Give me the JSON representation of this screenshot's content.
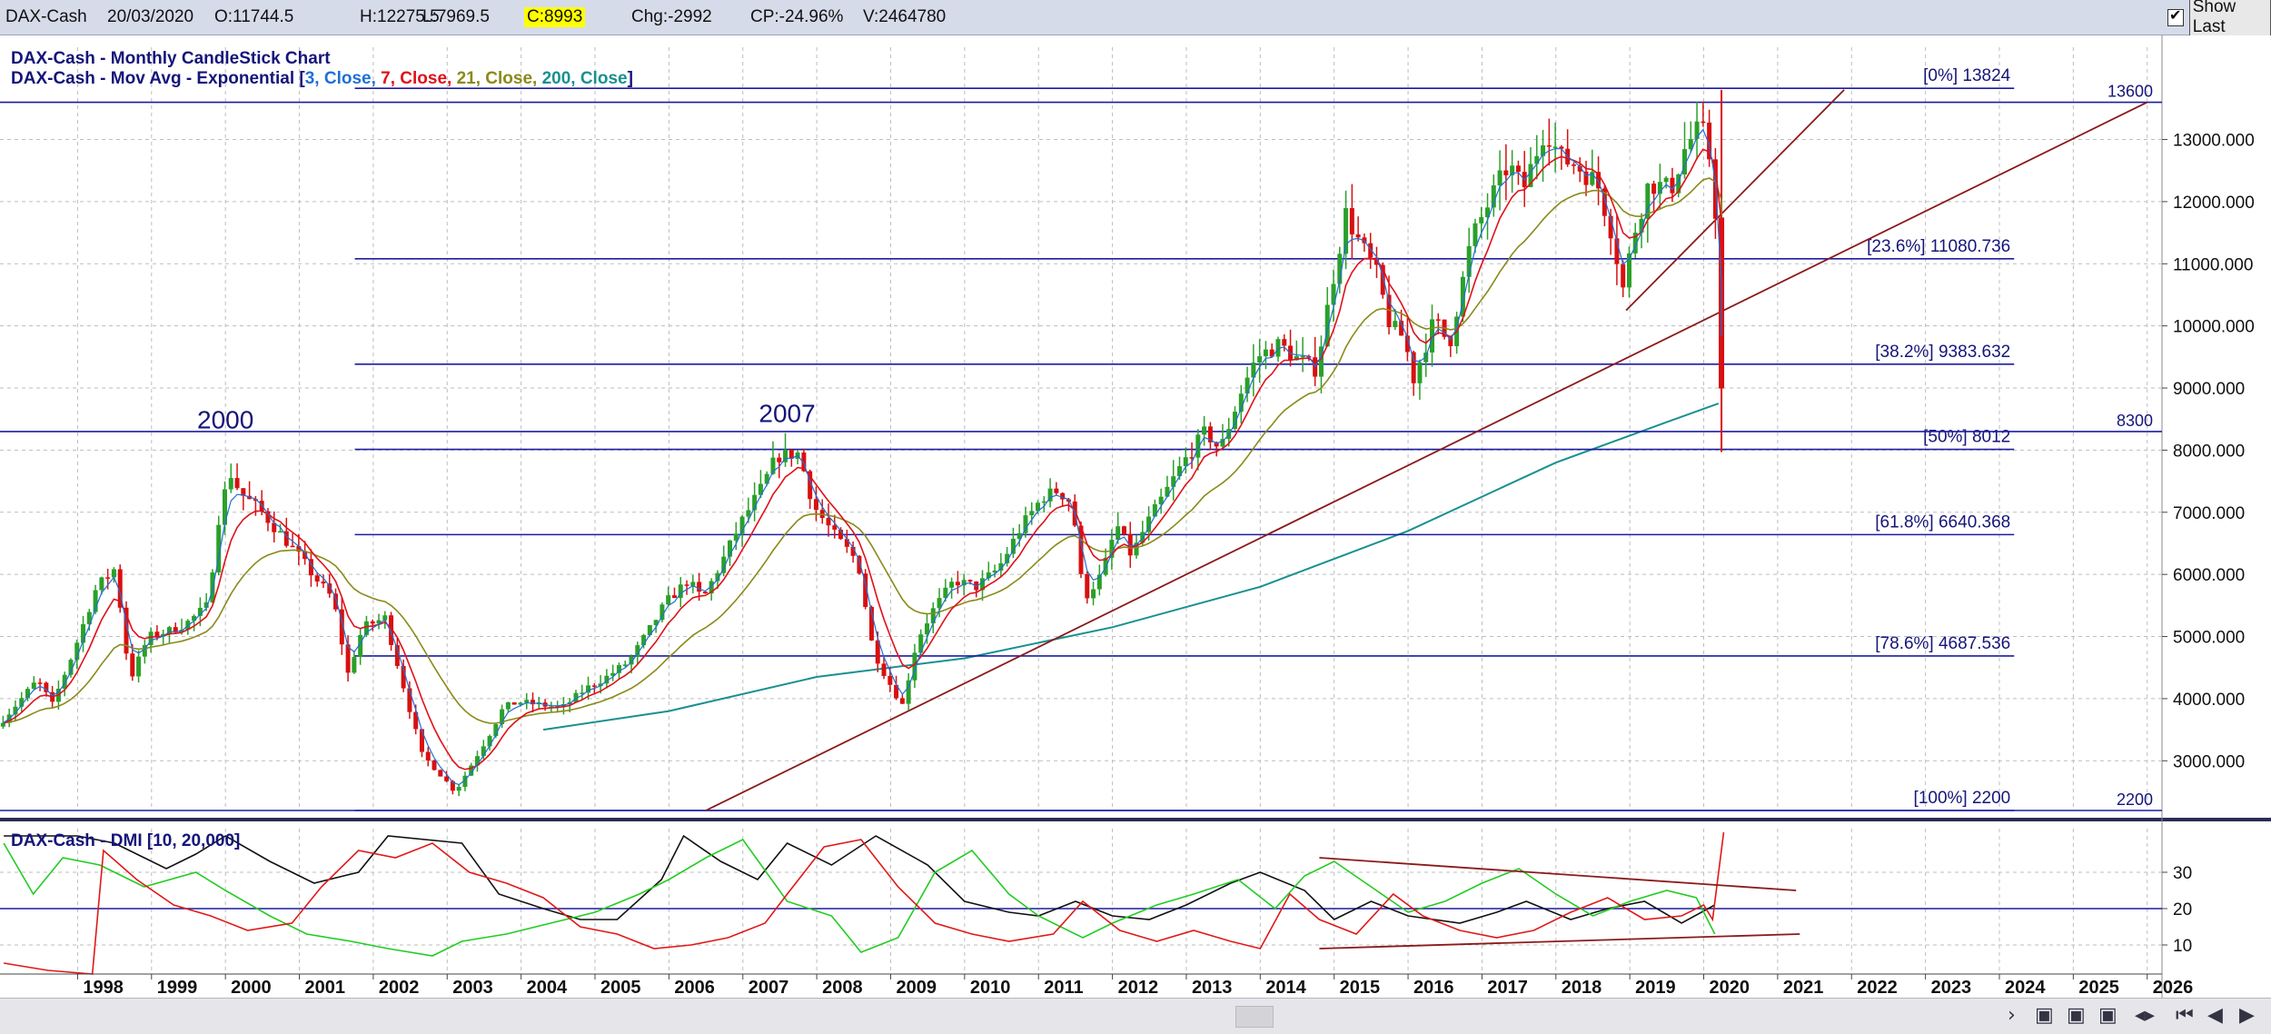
{
  "header": {
    "symbol": "DAX-Cash",
    "date": "20/03/2020",
    "open": "O:11744.5",
    "high": "H:12275.5",
    "low": "L:7969.5",
    "close": "C:8993",
    "change": "Chg:-2992",
    "change_pct": "CP:-24.96%",
    "volume": "V:2464780",
    "show_last_label": "Show Last",
    "show_last_checked": true
  },
  "legend": {
    "line1": "DAX-Cash - Monthly CandleStick Chart",
    "line2_prefix": "DAX-Cash - Mov Avg - Exponential [",
    "ema3": "3, Close, ",
    "ema7": "7, Close, ",
    "ema21": "21, Close, ",
    "ema200": "200, Close",
    "line2_suffix": "]",
    "colors": {
      "ema3": "#1f6fd6",
      "ema7": "#e0101a",
      "ema21": "#8a8a1a",
      "ema200": "#1a9090",
      "candle_up": "#2aa02a",
      "candle_down": "#d81010",
      "text": "#15157a"
    }
  },
  "dmi_legend": "DAX-Cash - DMI [10, 20,000]",
  "annotations": [
    {
      "text": "2000",
      "x": 2000.0,
      "y": 8350
    },
    {
      "text": "2007",
      "x": 2007.6,
      "y": 8450
    }
  ],
  "chart_data": [
    {
      "type": "candlestick",
      "title": "DAX-Cash - Monthly CandleStick Chart",
      "xlabel": "",
      "ylabel": "",
      "xlim": [
        1996.95,
        2026.2
      ],
      "ylim": [
        2200,
        13900
      ],
      "y_ticks": [
        "3000.000",
        "4000.000",
        "5000.000",
        "6000.000",
        "7000.000",
        "8000.000",
        "9000.000",
        "10000.000",
        "11000.000",
        "12000.000",
        "13000.000"
      ],
      "x_ticks": [
        "1998",
        "1999",
        "2000",
        "2001",
        "2002",
        "2003",
        "2004",
        "2005",
        "2006",
        "2007",
        "2008",
        "2009",
        "2010",
        "2011",
        "2012",
        "2013",
        "2014",
        "2015",
        "2016",
        "2017",
        "2018",
        "2019",
        "2020",
        "2021",
        "2022",
        "2023",
        "2024",
        "2025",
        "2026"
      ],
      "price_path": [
        [
          1996.95,
          3550
        ],
        [
          1997.5,
          4300
        ],
        [
          1997.7,
          3900
        ],
        [
          1998.0,
          4800
        ],
        [
          1998.3,
          5800
        ],
        [
          1998.55,
          6100
        ],
        [
          1998.75,
          4300
        ],
        [
          1999.0,
          5000
        ],
        [
          1999.3,
          5100
        ],
        [
          1999.5,
          5200
        ],
        [
          1999.8,
          5500
        ],
        [
          1999.95,
          6900
        ],
        [
          2000.1,
          7650
        ],
        [
          2000.25,
          7300
        ],
        [
          2000.5,
          7050
        ],
        [
          2000.75,
          6700
        ],
        [
          2001.0,
          6350
        ],
        [
          2001.25,
          5950
        ],
        [
          2001.5,
          5600
        ],
        [
          2001.7,
          4400
        ],
        [
          2001.9,
          5150
        ],
        [
          2002.2,
          5300
        ],
        [
          2002.45,
          4200
        ],
        [
          2002.7,
          3100
        ],
        [
          2002.9,
          2850
        ],
        [
          2003.15,
          2500
        ],
        [
          2003.35,
          2900
        ],
        [
          2003.6,
          3400
        ],
        [
          2003.8,
          3850
        ],
        [
          2004.0,
          3950
        ],
        [
          2004.3,
          3900
        ],
        [
          2004.6,
          3850
        ],
        [
          2004.9,
          4150
        ],
        [
          2005.2,
          4350
        ],
        [
          2005.5,
          4600
        ],
        [
          2005.8,
          5150
        ],
        [
          2006.0,
          5550
        ],
        [
          2006.3,
          5900
        ],
        [
          2006.5,
          5600
        ],
        [
          2006.8,
          6300
        ],
        [
          2007.0,
          6800
        ],
        [
          2007.3,
          7400
        ],
        [
          2007.5,
          7900
        ],
        [
          2007.8,
          7950
        ],
        [
          2008.0,
          7100
        ],
        [
          2008.3,
          6600
        ],
        [
          2008.6,
          6200
        ],
        [
          2008.8,
          4800
        ],
        [
          2009.0,
          4300
        ],
        [
          2009.2,
          3900
        ],
        [
          2009.4,
          4950
        ],
        [
          2009.6,
          5400
        ],
        [
          2009.9,
          5900
        ],
        [
          2010.2,
          5800
        ],
        [
          2010.5,
          6100
        ],
        [
          2010.8,
          6750
        ],
        [
          2011.1,
          7250
        ],
        [
          2011.3,
          7350
        ],
        [
          2011.5,
          7150
        ],
        [
          2011.65,
          5600
        ],
        [
          2011.9,
          6000
        ],
        [
          2012.1,
          6800
        ],
        [
          2012.3,
          6300
        ],
        [
          2012.5,
          6800
        ],
        [
          2012.8,
          7400
        ],
        [
          2013.0,
          7800
        ],
        [
          2013.3,
          8300
        ],
        [
          2013.5,
          8000
        ],
        [
          2013.8,
          9000
        ],
        [
          2014.0,
          9500
        ],
        [
          2014.3,
          9700
        ],
        [
          2014.5,
          9500
        ],
        [
          2014.8,
          9300
        ],
        [
          2015.0,
          10600
        ],
        [
          2015.2,
          11800
        ],
        [
          2015.4,
          11300
        ],
        [
          2015.6,
          10900
        ],
        [
          2015.8,
          10000
        ],
        [
          2016.0,
          9800
        ],
        [
          2016.1,
          9100
        ],
        [
          2016.4,
          10100
        ],
        [
          2016.6,
          9700
        ],
        [
          2016.9,
          11400
        ],
        [
          2017.1,
          11900
        ],
        [
          2017.4,
          12600
        ],
        [
          2017.6,
          12200
        ],
        [
          2017.9,
          13200
        ],
        [
          2018.1,
          12700
        ],
        [
          2018.3,
          12600
        ],
        [
          2018.6,
          12300
        ],
        [
          2018.8,
          11500
        ],
        [
          2018.95,
          10600
        ],
        [
          2019.1,
          11500
        ],
        [
          2019.3,
          12300
        ],
        [
          2019.6,
          12200
        ],
        [
          2019.8,
          12900
        ],
        [
          2020.0,
          13200
        ],
        [
          2020.1,
          12900
        ],
        [
          2020.2,
          11850
        ],
        [
          2020.27,
          8993
        ]
      ],
      "ema200": [
        [
          2004.3,
          3500
        ],
        [
          2006.0,
          3800
        ],
        [
          2008.0,
          4350
        ],
        [
          2010.0,
          4650
        ],
        [
          2012.0,
          5150
        ],
        [
          2014.0,
          5800
        ],
        [
          2016.0,
          6700
        ],
        [
          2018.0,
          7800
        ],
        [
          2019.5,
          8450
        ],
        [
          2020.2,
          8750
        ]
      ],
      "horizontal_lines": [
        {
          "label": "13600",
          "y": 13600
        },
        {
          "label": "8300",
          "y": 8300
        },
        {
          "label": "2200",
          "y": 2200
        }
      ],
      "fibonacci": [
        {
          "label": "[0%] 13824",
          "y": 13824
        },
        {
          "label": "[23.6%] 11080.736",
          "y": 11080.736
        },
        {
          "label": "[38.2%] 9383.632",
          "y": 9383.632
        },
        {
          "label": "[50%] 8012",
          "y": 8012
        },
        {
          "label": "[61.8%] 6640.368",
          "y": 6640.368
        },
        {
          "label": "[78.6%] 4687.536",
          "y": 4687.536
        },
        {
          "label": "[100%] 2200",
          "y": 2200
        }
      ],
      "fib_x_start": 2001.75,
      "fib_x_end": 2024.2,
      "trendlines": [
        [
          [
            2006.5,
            2200
          ],
          [
            2026.0,
            13600
          ]
        ],
        [
          [
            2018.95,
            10250
          ],
          [
            2021.9,
            13800
          ]
        ]
      ]
    },
    {
      "type": "line",
      "title": "DAX-Cash - DMI [10, 20,000]",
      "xlabel": "",
      "ylabel": "",
      "ylim": [
        2,
        42
      ],
      "y_ticks": [
        "10",
        "20",
        "30"
      ],
      "reference_line": 20,
      "series": [
        {
          "color": "#111111",
          "points": [
            [
              1997.0,
              40
            ],
            [
              1998.0,
              40
            ],
            [
              1998.5,
              38
            ],
            [
              1999.2,
              31
            ],
            [
              1999.6,
              35
            ],
            [
              2000.0,
              40
            ],
            [
              2000.6,
              33
            ],
            [
              2001.2,
              27
            ],
            [
              2001.8,
              30
            ],
            [
              2002.2,
              40
            ],
            [
              2003.2,
              38
            ],
            [
              2003.7,
              24
            ],
            [
              2004.3,
              20
            ],
            [
              2004.8,
              17
            ],
            [
              2005.3,
              17
            ],
            [
              2005.9,
              28
            ],
            [
              2006.2,
              40
            ],
            [
              2006.7,
              33
            ],
            [
              2007.2,
              28
            ],
            [
              2007.6,
              38
            ],
            [
              2008.2,
              32
            ],
            [
              2008.8,
              40
            ],
            [
              2009.5,
              32
            ],
            [
              2010.0,
              22
            ],
            [
              2010.6,
              19
            ],
            [
              2011.0,
              18
            ],
            [
              2011.5,
              22
            ],
            [
              2012.0,
              18
            ],
            [
              2012.5,
              17
            ],
            [
              2013.0,
              21
            ],
            [
              2013.6,
              27
            ],
            [
              2014.0,
              30
            ],
            [
              2014.6,
              25
            ],
            [
              2015.0,
              17
            ],
            [
              2015.5,
              22
            ],
            [
              2016.0,
              18
            ],
            [
              2016.7,
              16
            ],
            [
              2017.2,
              19
            ],
            [
              2017.6,
              22
            ],
            [
              2018.2,
              17
            ],
            [
              2018.7,
              20
            ],
            [
              2019.2,
              22
            ],
            [
              2019.7,
              16
            ],
            [
              2020.15,
              21
            ]
          ]
        },
        {
          "color": "#22cc22",
          "points": [
            [
              1997.0,
              38
            ],
            [
              1997.4,
              24
            ],
            [
              1997.8,
              34
            ],
            [
              1998.3,
              32
            ],
            [
              1998.9,
              26
            ],
            [
              1999.6,
              30
            ],
            [
              2000.0,
              25
            ],
            [
              2000.6,
              18
            ],
            [
              2001.1,
              13
            ],
            [
              2001.7,
              11
            ],
            [
              2002.2,
              9
            ],
            [
              2002.8,
              7
            ],
            [
              2003.2,
              11
            ],
            [
              2003.8,
              13
            ],
            [
              2004.4,
              16
            ],
            [
              2005.0,
              19
            ],
            [
              2005.6,
              24
            ],
            [
              2006.0,
              28
            ],
            [
              2006.5,
              34
            ],
            [
              2007.0,
              39
            ],
            [
              2007.6,
              22
            ],
            [
              2008.2,
              18
            ],
            [
              2008.6,
              8
            ],
            [
              2009.1,
              12
            ],
            [
              2009.6,
              30
            ],
            [
              2010.1,
              36
            ],
            [
              2010.6,
              24
            ],
            [
              2011.0,
              18
            ],
            [
              2011.6,
              12
            ],
            [
              2012.0,
              16
            ],
            [
              2012.6,
              21
            ],
            [
              2013.1,
              24
            ],
            [
              2013.7,
              28
            ],
            [
              2014.2,
              20
            ],
            [
              2014.6,
              29
            ],
            [
              2015.0,
              33
            ],
            [
              2015.5,
              26
            ],
            [
              2016.0,
              19
            ],
            [
              2016.5,
              22
            ],
            [
              2017.0,
              27
            ],
            [
              2017.5,
              31
            ],
            [
              2018.0,
              24
            ],
            [
              2018.5,
              18
            ],
            [
              2019.0,
              22
            ],
            [
              2019.5,
              25
            ],
            [
              2019.9,
              23
            ],
            [
              2020.15,
              13
            ]
          ]
        },
        {
          "color": "#e01818",
          "points": [
            [
              1997.0,
              5
            ],
            [
              1997.6,
              3
            ],
            [
              1998.2,
              2
            ],
            [
              1998.35,
              36
            ],
            [
              1998.8,
              28
            ],
            [
              1999.3,
              21
            ],
            [
              1999.8,
              18
            ],
            [
              2000.3,
              14
            ],
            [
              2000.9,
              16
            ],
            [
              2001.3,
              26
            ],
            [
              2001.8,
              36
            ],
            [
              2002.3,
              34
            ],
            [
              2002.8,
              38
            ],
            [
              2003.3,
              30
            ],
            [
              2003.8,
              27
            ],
            [
              2004.3,
              23
            ],
            [
              2004.8,
              15
            ],
            [
              2005.3,
              13
            ],
            [
              2005.8,
              9
            ],
            [
              2006.3,
              10
            ],
            [
              2006.8,
              12
            ],
            [
              2007.3,
              16
            ],
            [
              2007.6,
              24
            ],
            [
              2008.1,
              37
            ],
            [
              2008.6,
              39
            ],
            [
              2009.1,
              26
            ],
            [
              2009.6,
              16
            ],
            [
              2010.1,
              13
            ],
            [
              2010.6,
              11
            ],
            [
              2011.2,
              13
            ],
            [
              2011.6,
              22
            ],
            [
              2012.1,
              14
            ],
            [
              2012.6,
              11
            ],
            [
              2013.1,
              14
            ],
            [
              2013.6,
              11
            ],
            [
              2014.0,
              9
            ],
            [
              2014.4,
              24
            ],
            [
              2014.8,
              17
            ],
            [
              2015.3,
              13
            ],
            [
              2015.8,
              24
            ],
            [
              2016.2,
              18
            ],
            [
              2016.7,
              14
            ],
            [
              2017.2,
              12
            ],
            [
              2017.7,
              14
            ],
            [
              2018.2,
              19
            ],
            [
              2018.7,
              23
            ],
            [
              2019.2,
              17
            ],
            [
              2019.7,
              18
            ],
            [
              2020.0,
              21
            ],
            [
              2020.12,
              17
            ],
            [
              2020.27,
              41
            ]
          ]
        }
      ],
      "trendlines": [
        [
          [
            2014.8,
            34
          ],
          [
            2021.25,
            25
          ]
        ],
        [
          [
            2014.8,
            9
          ],
          [
            2021.3,
            13
          ]
        ]
      ]
    }
  ]
}
